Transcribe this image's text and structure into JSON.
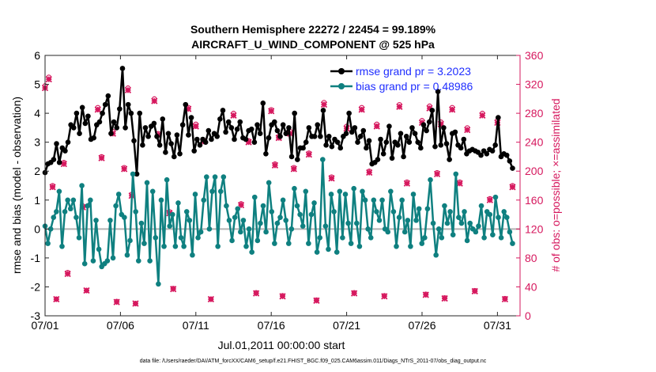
{
  "chart_data": {
    "type": "line",
    "title": "Southern Hemisphere 22272 / 22454 = 99.189%",
    "subtitle": "AIRCRAFT_U_WIND_COMPONENT @ 525 hPa",
    "xlabel": "Jul.01,2011 00:00:00 start",
    "ylabel": "rmse and bias (model - observation)",
    "y2label": "# of obs: o=possible; ×=assimilated",
    "footer": "data file: /Users/raeder/DAI/ATM_forcXX/CAM6_setup/f.e21.FHIST_BGC.f09_025.CAM6assim.011/Diags_NTrS_2011-07/obs_diag_output.nc",
    "xlim": [
      0,
      31.5
    ],
    "ylim": [
      -3,
      6
    ],
    "y2lim": [
      0,
      360
    ],
    "x_ticks": [
      {
        "v": 0,
        "label": "07/01"
      },
      {
        "v": 5,
        "label": "07/06"
      },
      {
        "v": 10,
        "label": "07/11"
      },
      {
        "v": 15,
        "label": "07/16"
      },
      {
        "v": 20,
        "label": "07/21"
      },
      {
        "v": 25,
        "label": "07/26"
      },
      {
        "v": 30,
        "label": "07/31"
      }
    ],
    "y_ticks": [
      "-3",
      "-2",
      "-1",
      "0",
      "1",
      "2",
      "3",
      "4",
      "5",
      "6"
    ],
    "y2_ticks": [
      "0",
      "40",
      "80",
      "120",
      "160",
      "200",
      "240",
      "280",
      "320",
      "360"
    ],
    "colors": {
      "rmse": "#000000",
      "bias": "#0f8080",
      "obs": "#d6185e",
      "zero": "#b3b3b3",
      "legend_text": "#1f2eff"
    },
    "series": [
      {
        "name": "rmse grand pr = 3.2023",
        "values": [
          1.95,
          2.25,
          2.3,
          2.4,
          2.95,
          2.3,
          2.8,
          2.7,
          3.0,
          3.6,
          3.5,
          4.0,
          3.3,
          4.2,
          3.65,
          3.9,
          3.1,
          3.15,
          3.6,
          3.7,
          4.0,
          4.3,
          4.6,
          3.3,
          3.7,
          3.5,
          4.15,
          5.55,
          3.5,
          4.3,
          4.0,
          3.05,
          1.9,
          4.0,
          2.9,
          3.5,
          3.2,
          3.55,
          3.65,
          3.2,
          2.9,
          3.8,
          2.65,
          3.3,
          2.95,
          2.5,
          3.25,
          2.6,
          3.6,
          4.3,
          3.25,
          3.85,
          2.7,
          3.1,
          2.9,
          3.1,
          3.0,
          3.4,
          3.1,
          3.3,
          3.2,
          3.8,
          4.1,
          3.35,
          3.7,
          3.5,
          3.1,
          3.45,
          3.7,
          3.15,
          3.1,
          3.4,
          3.45,
          3.0,
          3.6,
          3.3,
          4.35,
          2.6,
          3.15,
          3.6,
          3.7,
          3.4,
          3.2,
          3.6,
          3.3,
          3.5,
          2.5,
          4.0,
          2.4,
          2.8,
          2.8,
          3.0,
          3.5,
          3.2,
          3.2,
          3.6,
          3.2,
          4.1,
          2.9,
          3.2,
          2.85,
          3.1,
          3.0,
          2.8,
          3.2,
          3.3,
          4.0,
          3.35,
          3.5,
          3.0,
          3.2,
          3.4,
          2.8,
          3.05,
          2.25,
          2.3,
          2.4,
          3.1,
          2.6,
          3.0,
          3.55,
          2.45,
          3.0,
          2.9,
          3.3,
          2.5,
          3.2,
          3.0,
          3.5,
          3.3,
          3.0,
          2.8,
          3.6,
          3.4,
          3.7,
          4.1,
          2.85,
          4.75,
          2.9,
          3.5,
          2.95,
          2.4,
          3.3,
          3.35,
          2.9,
          2.8,
          3.1,
          2.6,
          2.7,
          2.75,
          2.7,
          2.65,
          2.55,
          2.7,
          2.6,
          2.75,
          2.7,
          2.9,
          3.85,
          2.5,
          2.6,
          2.55,
          2.35,
          2.1
        ]
      },
      {
        "name": "bias grand pr = 0.48986",
        "values": [
          0.1,
          -0.5,
          0.0,
          0.4,
          0.6,
          1.3,
          -0.6,
          0.6,
          1.0,
          0.7,
          1.0,
          0.4,
          -0.3,
          1.5,
          -1.2,
          0.8,
          1.0,
          -1.1,
          0.3,
          -0.7,
          -1.3,
          -1.2,
          -1.1,
          0.3,
          -1.0,
          0.8,
          1.2,
          0.5,
          0.4,
          -0.9,
          -0.4,
          1.9,
          0.6,
          -1.1,
          0.2,
          -0.5,
          1.6,
          -1.1,
          1.3,
          -0.3,
          -1.9,
          1.0,
          -0.6,
          1.7,
          0.1,
          0.5,
          -0.6,
          0.9,
          -0.3,
          -0.6,
          0.6,
          0.3,
          -0.9,
          1.2,
          -0.3,
          -0.1,
          1.0,
          1.8,
          0.0,
          1.3,
          1.8,
          -0.6,
          1.3,
          1.8,
          0.8,
          0.3,
          -0.4,
          0.4,
          0.7,
          -0.1,
          0.3,
          -0.6,
          0.0,
          -0.8,
          1.1,
          -0.4,
          0.2,
          0.8,
          -0.1,
          1.6,
          0.6,
          -0.5,
          0.2,
          0.4,
          1.0,
          0.3,
          -0.5,
          0.0,
          1.4,
          0.8,
          0.5,
          0.1,
          1.3,
          -0.5,
          0.5,
          0.9,
          -0.8,
          -0.3,
          2.4,
          0.1,
          -0.7,
          1.2,
          0.6,
          -0.8,
          1.3,
          -0.3,
          1.2,
          0.2,
          -0.5,
          1.4,
          0.2,
          -0.6,
          1.3,
          1.0,
          0.0,
          -0.3,
          1.0,
          0.6,
          0.3,
          1.0,
          0.0,
          -0.1,
          1.3,
          0.6,
          -0.6,
          0.4,
          1.0,
          -0.1,
          0.3,
          -0.6,
          1.2,
          0.3,
          0.7,
          -0.5,
          -0.3,
          0.7,
          1.7,
          0.2,
          -0.9,
          0.0,
          -0.3,
          0.8,
          0.2,
          0.6,
          -0.2,
          1.9,
          0.4,
          0.2,
          0.6,
          -0.4,
          0.2,
          0.0,
          -0.1,
          0.1,
          0.8,
          -0.3,
          0.6,
          0.5,
          -0.2,
          1.1,
          0.4,
          -0.3,
          0.6,
          0.4,
          -0.1,
          -0.5
        ]
      }
    ],
    "obs_possible": {
      "name": "# of obs possible",
      "days": [
        0,
        0.25,
        0.5,
        0.75,
        1.25,
        1.5,
        2.5,
        2.75,
        3.5,
        3.75,
        4.5,
        4.75,
        5.25,
        5.5,
        5.75,
        6.0,
        7.25,
        7.5,
        8.25,
        8.5,
        9.5,
        10.0,
        10.5,
        11.0,
        12.5,
        13.0,
        13.5,
        14.0,
        15.0,
        15.25,
        15.5,
        15.75,
        16.25,
        16.5,
        17.5,
        18.0,
        18.5,
        19.0,
        20.0,
        20.5,
        21.0,
        21.5,
        22.0,
        22.5,
        23.5,
        24.0,
        25.0,
        25.25,
        25.5,
        26.0,
        26.25,
        26.5,
        27.0,
        27.5,
        28.0,
        28.5,
        29.0,
        29.5,
        30.0,
        30.5,
        31.0
      ],
      "counts": [
        318,
        330,
        180,
        23,
        212,
        60,
        152,
        35,
        288,
        220,
        255,
        20,
        205,
        315,
        168,
        17,
        300,
        252,
        144,
        38,
        288,
        265,
        243,
        23,
        280,
        155,
        242,
        32,
        285,
        210,
        248,
        28,
        255,
        205,
        225,
        22,
        295,
        192,
        262,
        32,
        288,
        200,
        265,
        28,
        292,
        185,
        270,
        30,
        290,
        198,
        268,
        25,
        288,
        185,
        260,
        35,
        280,
        162,
        270,
        24,
        180
      ]
    },
    "obs_assimilated": {
      "name": "# of obs assimilated",
      "days": [
        0,
        0.25,
        0.5,
        0.75,
        1.25,
        1.5,
        2.5,
        2.75,
        3.5,
        3.75,
        4.5,
        4.75,
        5.25,
        5.5,
        5.75,
        6.0,
        7.25,
        7.5,
        8.25,
        8.5,
        9.5,
        10.0,
        10.5,
        11.0,
        12.5,
        13.0,
        13.5,
        14.0,
        15.0,
        15.25,
        15.5,
        15.75,
        16.25,
        16.5,
        17.5,
        18.0,
        18.5,
        19.0,
        20.0,
        20.5,
        21.0,
        21.5,
        22.0,
        22.5,
        23.5,
        24.0,
        25.0,
        25.25,
        25.5,
        26.0,
        26.25,
        26.5,
        27.0,
        27.5,
        28.0,
        28.5,
        29.0,
        29.5,
        30.0,
        30.5,
        31.0
      ],
      "counts": [
        315,
        327,
        178,
        23,
        210,
        58,
        150,
        35,
        285,
        218,
        252,
        19,
        203,
        312,
        166,
        17,
        297,
        250,
        142,
        37,
        286,
        262,
        241,
        23,
        277,
        153,
        240,
        31,
        283,
        208,
        246,
        27,
        252,
        203,
        223,
        21,
        292,
        190,
        259,
        31,
        285,
        198,
        262,
        27,
        289,
        183,
        267,
        29,
        287,
        196,
        265,
        24,
        285,
        183,
        257,
        34,
        277,
        160,
        267,
        23,
        178
      ]
    },
    "legend_position": "top-right"
  }
}
